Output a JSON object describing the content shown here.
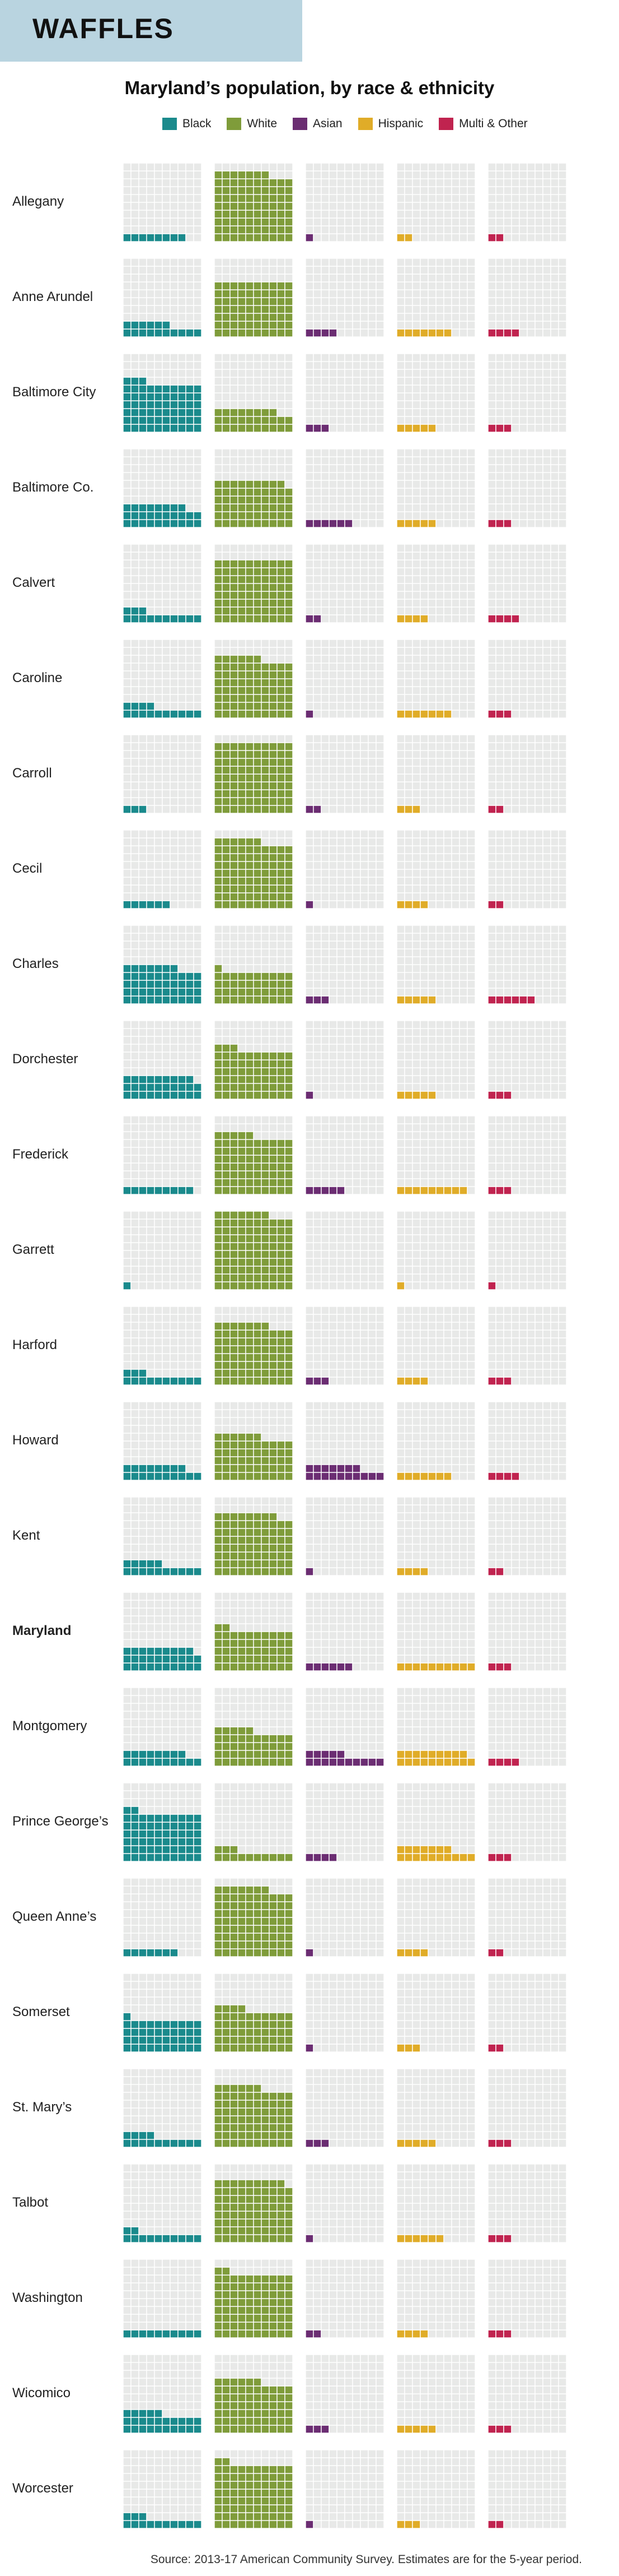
{
  "banner": {
    "title": "WAFFLES"
  },
  "chart_data": {
    "type": "waffle",
    "title": "Maryland’s population, by race & ethnicity",
    "units_per_square": 1,
    "squares_per_waffle": 100,
    "colors": {
      "Black": "#1a8a8c",
      "White": "#7f9c3a",
      "Asian": "#6b2d72",
      "Hispanic": "#e0ac28",
      "Multi & Other": "#c0234f",
      "empty": "#e8e9e8",
      "grid": "#ffffff"
    },
    "series": [
      {
        "name": "Black"
      },
      {
        "name": "White"
      },
      {
        "name": "Asian"
      },
      {
        "name": "Hispanic"
      },
      {
        "name": "Multi & Other"
      }
    ],
    "rows": [
      {
        "name": "Allegany",
        "values": [
          8,
          87,
          1,
          2,
          2
        ],
        "bold": false
      },
      {
        "name": "Anne Arundel",
        "values": [
          16,
          70,
          4,
          7,
          4
        ],
        "bold": false
      },
      {
        "name": "Baltimore City",
        "values": [
          63,
          28,
          3,
          5,
          3
        ],
        "bold": false
      },
      {
        "name": "Baltimore Co.",
        "values": [
          28,
          59,
          6,
          5,
          3
        ],
        "bold": false
      },
      {
        "name": "Calvert",
        "values": [
          13,
          80,
          2,
          4,
          4
        ],
        "bold": false
      },
      {
        "name": "Caroline",
        "values": [
          14,
          76,
          1,
          7,
          3
        ],
        "bold": false
      },
      {
        "name": "Carroll",
        "values": [
          3,
          90,
          2,
          3,
          2
        ],
        "bold": false
      },
      {
        "name": "Cecil",
        "values": [
          6,
          86,
          1,
          4,
          2
        ],
        "bold": false
      },
      {
        "name": "Charles",
        "values": [
          47,
          41,
          3,
          5,
          6
        ],
        "bold": false
      },
      {
        "name": "Dorchester",
        "values": [
          29,
          63,
          1,
          5,
          3
        ],
        "bold": false
      },
      {
        "name": "Frederick",
        "values": [
          9,
          75,
          5,
          9,
          3
        ],
        "bold": false
      },
      {
        "name": "Garrett",
        "values": [
          1,
          97,
          0,
          1,
          1
        ],
        "bold": false
      },
      {
        "name": "Harford",
        "values": [
          13,
          77,
          3,
          4,
          3
        ],
        "bold": false
      },
      {
        "name": "Howard",
        "values": [
          18,
          56,
          17,
          7,
          4
        ],
        "bold": false
      },
      {
        "name": "Kent",
        "values": [
          15,
          78,
          1,
          4,
          2
        ],
        "bold": false
      },
      {
        "name": "Maryland",
        "values": [
          29,
          52,
          6,
          10,
          3
        ],
        "bold": true
      },
      {
        "name": "Montgomery",
        "values": [
          18,
          45,
          15,
          19,
          4
        ],
        "bold": false
      },
      {
        "name": "Prince George’s",
        "values": [
          62,
          13,
          4,
          17,
          3
        ],
        "bold": false
      },
      {
        "name": "Queen Anne’s",
        "values": [
          7,
          87,
          1,
          4,
          2
        ],
        "bold": false
      },
      {
        "name": "Somerset",
        "values": [
          41,
          54,
          1,
          3,
          2
        ],
        "bold": false
      },
      {
        "name": "St. Mary’s",
        "values": [
          14,
          76,
          3,
          5,
          3
        ],
        "bold": false
      },
      {
        "name": "Talbot",
        "values": [
          12,
          79,
          1,
          6,
          3
        ],
        "bold": false
      },
      {
        "name": "Washington",
        "values": [
          10,
          82,
          2,
          4,
          3
        ],
        "bold": false
      },
      {
        "name": "Wicomico",
        "values": [
          25,
          66,
          3,
          5,
          3
        ],
        "bold": false
      },
      {
        "name": "Worcester",
        "values": [
          13,
          82,
          1,
          3,
          2
        ],
        "bold": false
      }
    ]
  },
  "source": "Source: 2013-17 American Community Survey. Estimates are for the 5-year period."
}
